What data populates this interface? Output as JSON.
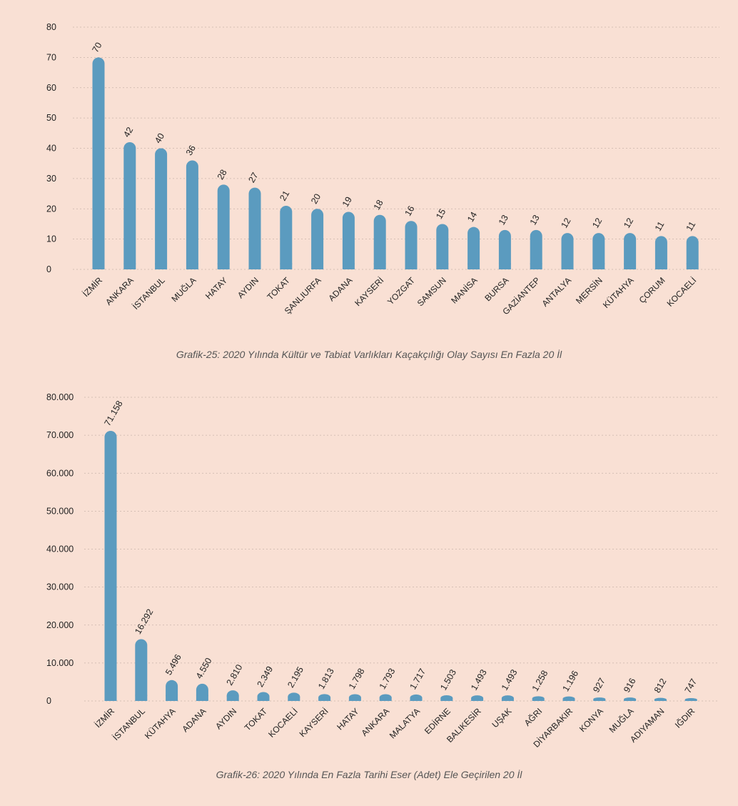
{
  "colors": {
    "background": "#f9e0d4",
    "bar": "#5b9bbf",
    "grid": "#c9b4aa",
    "text": "#222222",
    "caption": "#555555"
  },
  "chart_data": [
    {
      "type": "bar",
      "title": "Grafik-25: 2020 Yılında Kültür ve Tabiat Varlıkları Kaçakçılığı Olay Sayısı En Fazla 20 İl",
      "categories": [
        "İZMİR",
        "ANKARA",
        "İSTANBUL",
        "MUĞLA",
        "HATAY",
        "AYDIN",
        "TOKAT",
        "ŞANLIURFA",
        "ADANA",
        "KAYSERİ",
        "YOZGAT",
        "SAMSUN",
        "MANİSA",
        "BURSA",
        "GAZİANTEP",
        "ANTALYA",
        "MERSİN",
        "KÜTAHYA",
        "ÇORUM",
        "KOCAELİ"
      ],
      "values": [
        70,
        42,
        40,
        36,
        28,
        27,
        21,
        20,
        19,
        18,
        16,
        15,
        14,
        13,
        13,
        12,
        12,
        12,
        11,
        11
      ],
      "value_labels": [
        "70",
        "42",
        "40",
        "36",
        "28",
        "27",
        "21",
        "20",
        "19",
        "18",
        "16",
        "15",
        "14",
        "13",
        "13",
        "12",
        "12",
        "12",
        "11",
        "11"
      ],
      "yticks": [
        0,
        10,
        20,
        30,
        40,
        50,
        60,
        70,
        80
      ],
      "ytick_labels": [
        "0",
        "10",
        "20",
        "30",
        "40",
        "50",
        "60",
        "70",
        "80"
      ],
      "ylim": [
        0,
        80
      ],
      "grid": true,
      "xlabel": "",
      "ylabel": ""
    },
    {
      "type": "bar",
      "title": "Grafik-26: 2020 Yılında En Fazla Tarihi Eser (Adet) Ele Geçirilen 20 İl",
      "categories": [
        "İZMİR",
        "İSTANBUL",
        "KÜTAHYA",
        "ADANA",
        "AYDIN",
        "TOKAT",
        "KOCAELİ",
        "KAYSERİ",
        "HATAY",
        "ANKARA",
        "MALATYA",
        "EDİRNE",
        "BALIKESİR",
        "UŞAK",
        "AĞRI",
        "DİYARBAKIR",
        "KONYA",
        "MUĞLA",
        "ADIYAMAN",
        "IĞDIR"
      ],
      "values": [
        71158,
        16292,
        5496,
        4550,
        2810,
        2349,
        2195,
        1813,
        1798,
        1793,
        1717,
        1503,
        1493,
        1493,
        1258,
        1196,
        927,
        916,
        812,
        747
      ],
      "value_labels": [
        "71.158",
        "16.292",
        "5.496",
        "4.550",
        "2.810",
        "2.349",
        "2.195",
        "1.813",
        "1.798",
        "1.793",
        "1.717",
        "1.503",
        "1.493",
        "1.493",
        "1.258",
        "1.196",
        "927",
        "916",
        "812",
        "747"
      ],
      "yticks": [
        0,
        10000,
        20000,
        30000,
        40000,
        50000,
        60000,
        70000,
        80000
      ],
      "ytick_labels": [
        "0",
        "10.000",
        "20.000",
        "30.000",
        "40.000",
        "50.000",
        "60.000",
        "70.000",
        "80.000"
      ],
      "ylim": [
        0,
        80000
      ],
      "grid": true,
      "xlabel": "",
      "ylabel": ""
    }
  ]
}
